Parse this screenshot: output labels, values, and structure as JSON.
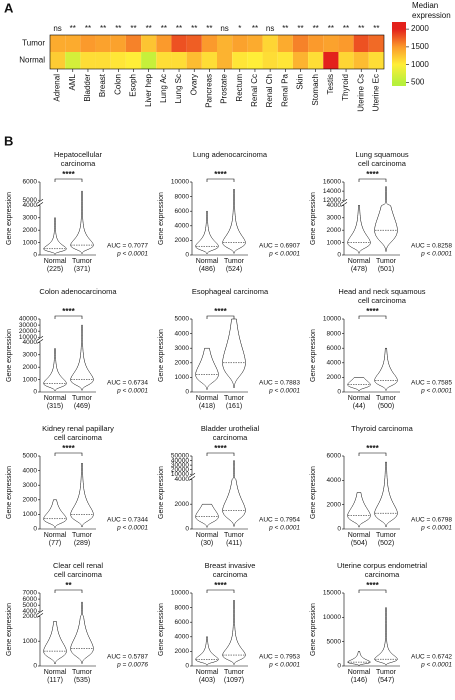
{
  "chart_data": [
    {
      "type": "heatmap",
      "panel": "A",
      "categories": [
        "Adrenal",
        "AML",
        "Bladder",
        "Breast",
        "Colon",
        "Esoph",
        "Liver hep",
        "Lung Ac",
        "Lung Sc",
        "Ovary",
        "Pancreas",
        "Prostate",
        "Rectum",
        "Renal Cc",
        "Renal Ch",
        "Renal Pa",
        "Skin",
        "Stomach",
        "Testis",
        "Thyroid",
        "Uterine Cs",
        "Uterine Ec"
      ],
      "series": [
        {
          "name": "Tumor",
          "values": [
            1400,
            1400,
            1500,
            1450,
            1450,
            1600,
            1250,
            1500,
            1800,
            1750,
            1500,
            1350,
            1450,
            1400,
            1150,
            1400,
            1600,
            1500,
            1450,
            1500,
            1800,
            1700
          ]
        },
        {
          "name": "Normal",
          "values": [
            1200,
            700,
            1100,
            1100,
            1050,
            1000,
            600,
            1100,
            1100,
            1300,
            1100,
            1350,
            1050,
            1000,
            1100,
            1050,
            1350,
            1100,
            2000,
            1150,
            1300,
            1100
          ]
        }
      ],
      "significance": [
        "ns",
        "**",
        "**",
        "**",
        "**",
        "**",
        "**",
        "**",
        "**",
        "**",
        "**",
        "ns",
        "*",
        "**",
        "ns",
        "**",
        "**",
        "**",
        "**",
        "**",
        "**",
        "**"
      ],
      "colorbar_title": [
        "Median",
        "expression"
      ],
      "clim": [
        400,
        2200
      ],
      "cticks": [
        500,
        1000,
        1500,
        2000
      ],
      "colors": [
        "#b8f03c",
        "#ffee38",
        "#fb9a2c",
        "#e3211c"
      ]
    },
    {
      "type": "violin",
      "panel": "B",
      "title": [
        "Hepatocellular",
        "carcinoma"
      ],
      "ylabel": "Gene expression",
      "groups": [
        {
          "name": "Normal",
          "n": "(225)",
          "median": 500,
          "max": 3000
        },
        {
          "name": "Tumor",
          "n": "(371)",
          "median": 800,
          "max": 5500
        }
      ],
      "significance": "****",
      "auc": "AUC = 0.7077",
      "p": "p < 0.0001",
      "ylim": [
        0,
        6000
      ],
      "yticks": [
        0,
        1000,
        2000,
        3000,
        4000,
        5000,
        6000
      ],
      "ybreak": [
        4000,
        5000
      ]
    },
    {
      "type": "violin",
      "title": [
        "Lung adenocarcinoma"
      ],
      "ylabel": "Gene expression",
      "groups": [
        {
          "name": "Normal",
          "n": "(486)",
          "median": 1200,
          "max": 6000
        },
        {
          "name": "Tumor",
          "n": "(524)",
          "median": 1700,
          "max": 9000
        }
      ],
      "significance": "****",
      "auc": "AUC = 0.6907",
      "p": "p < 0.0001",
      "ylim": [
        0,
        10000
      ],
      "yticks": [
        0,
        2000,
        4000,
        6000,
        8000,
        10000
      ]
    },
    {
      "type": "violin",
      "title": [
        "Lung squamous",
        "cell carcinoma"
      ],
      "ylabel": "Gene expression",
      "groups": [
        {
          "name": "Normal",
          "n": "(478)",
          "median": 1000,
          "max": 4000
        },
        {
          "name": "Tumor",
          "n": "(501)",
          "median": 2000,
          "max": 15000
        }
      ],
      "significance": "****",
      "auc": "AUC = 0.8258",
      "p": "p < 0.0001",
      "ylim": [
        0,
        16000
      ],
      "yticks": [
        0,
        1000,
        2000,
        3000,
        4000,
        12000,
        14000,
        16000
      ],
      "ybreak": [
        4000,
        12000
      ]
    },
    {
      "type": "violin",
      "title": [
        "Colon adenocarcinoma"
      ],
      "ylabel": "Gene expression",
      "groups": [
        {
          "name": "Normal",
          "n": "(315)",
          "median": 700,
          "max": 3500
        },
        {
          "name": "Tumor",
          "n": "(469)",
          "median": 1000,
          "max": 30000
        }
      ],
      "significance": "****",
      "auc": "AUC = 0.6734",
      "p": "p < 0.0001",
      "ylim": [
        0,
        40000
      ],
      "yticks": [
        0,
        1000,
        2000,
        3000,
        4000,
        10000,
        20000,
        30000,
        40000
      ],
      "ybreak": [
        4000,
        10000
      ]
    },
    {
      "type": "violin",
      "title": [
        "Esophageal carcinoma"
      ],
      "ylabel": "Gene expression",
      "groups": [
        {
          "name": "Normal",
          "n": "(418)",
          "median": 1200,
          "max": 3000
        },
        {
          "name": "Tumor",
          "n": "(161)",
          "median": 2000,
          "max": 5000
        }
      ],
      "significance": "****",
      "auc": "AUC = 0.7883",
      "p": "p < 0.0001",
      "ylim": [
        0,
        5000
      ],
      "yticks": [
        0,
        1000,
        2000,
        3000,
        4000,
        5000
      ]
    },
    {
      "type": "violin",
      "title": [
        "Head and neck squamous",
        "cell carcinoma"
      ],
      "ylabel": "Gene expression",
      "groups": [
        {
          "name": "Normal",
          "n": "(44)",
          "median": 1000,
          "max": 2000
        },
        {
          "name": "Tumor",
          "n": "(500)",
          "median": 1600,
          "max": 6000
        }
      ],
      "significance": "****",
      "auc": "AUC = 0.7585",
      "p": "p < 0.0001",
      "ylim": [
        0,
        10000
      ],
      "yticks": [
        0,
        2000,
        4000,
        6000,
        8000,
        10000
      ]
    },
    {
      "type": "violin",
      "title": [
        "Kidney renal papillary",
        "cell carcinoma"
      ],
      "ylabel": "Gene expression",
      "groups": [
        {
          "name": "Normal",
          "n": "(77)",
          "median": 700,
          "max": 2000
        },
        {
          "name": "Tumor",
          "n": "(289)",
          "median": 1000,
          "max": 4500
        }
      ],
      "significance": "****",
      "auc": "AUC = 0.7344",
      "p": "p < 0.0001",
      "ylim": [
        0,
        5000
      ],
      "yticks": [
        0,
        1000,
        2000,
        3000,
        4000,
        5000
      ]
    },
    {
      "type": "violin",
      "title": [
        "Bladder urothelial",
        "carcinoma"
      ],
      "ylabel": "Gene expression",
      "groups": [
        {
          "name": "Normal",
          "n": "(30)",
          "median": 1000,
          "max": 2000
        },
        {
          "name": "Tumor",
          "n": "(411)",
          "median": 1500,
          "max": 40000
        }
      ],
      "significance": "****",
      "auc": "AUC = 0.7954",
      "p": "p < 0.0001",
      "ylim": [
        0,
        50000
      ],
      "yticks": [
        0,
        2000,
        4000,
        10000,
        20000,
        30000,
        40000,
        50000
      ],
      "ybreak": [
        4000,
        10000
      ]
    },
    {
      "type": "violin",
      "title": [
        "Thyroid carcinoma"
      ],
      "ylabel": "Gene expression",
      "groups": [
        {
          "name": "Normal",
          "n": "(504)",
          "median": 1100,
          "max": 3000
        },
        {
          "name": "Tumor",
          "n": "(502)",
          "median": 1300,
          "max": 5500
        }
      ],
      "significance": "****",
      "auc": "AUC = 0.6798",
      "p": "p < 0.0001",
      "ylim": [
        0,
        6000
      ],
      "yticks": [
        0,
        2000,
        4000,
        6000
      ]
    },
    {
      "type": "violin",
      "title": [
        "Clear cell renal",
        "cell carcinoma"
      ],
      "ylabel": "Gene expression",
      "groups": [
        {
          "name": "Normal",
          "n": "(117)",
          "median": 600,
          "max": 1800
        },
        {
          "name": "Tumor",
          "n": "(535)",
          "median": 700,
          "max": 5500
        }
      ],
      "significance": "**",
      "auc": "AUC = 0.5787",
      "p": "p = 0.0076",
      "ylim": [
        0,
        7000
      ],
      "yticks": [
        0,
        1000,
        2000,
        4000,
        5000,
        6000,
        7000
      ],
      "ybreak": [
        2000,
        4000
      ]
    },
    {
      "type": "violin",
      "title": [
        "Breast invasive",
        "carcinoma"
      ],
      "ylabel": "Gene expression",
      "groups": [
        {
          "name": "Normal",
          "n": "(403)",
          "median": 900,
          "max": 4000
        },
        {
          "name": "Tumor",
          "n": "(1097)",
          "median": 1500,
          "max": 9000
        }
      ],
      "significance": "****",
      "auc": "AUC = 0.7953",
      "p": "p < 0.0001",
      "ylim": [
        0,
        10000
      ],
      "yticks": [
        0,
        2000,
        4000,
        6000,
        8000,
        10000
      ]
    },
    {
      "type": "violin",
      "title": [
        "Uterine corpus endometrial",
        "carcinoma"
      ],
      "ylabel": "Gene expression",
      "groups": [
        {
          "name": "Normal",
          "n": "(146)",
          "median": 800,
          "max": 3000
        },
        {
          "name": "Tumor",
          "n": "(547)",
          "median": 1400,
          "max": 12000
        }
      ],
      "significance": "****",
      "auc": "AUC = 0.6742",
      "p": "p < 0.0001",
      "ylim": [
        0,
        15000
      ],
      "yticks": [
        0,
        5000,
        10000,
        15000
      ]
    }
  ]
}
